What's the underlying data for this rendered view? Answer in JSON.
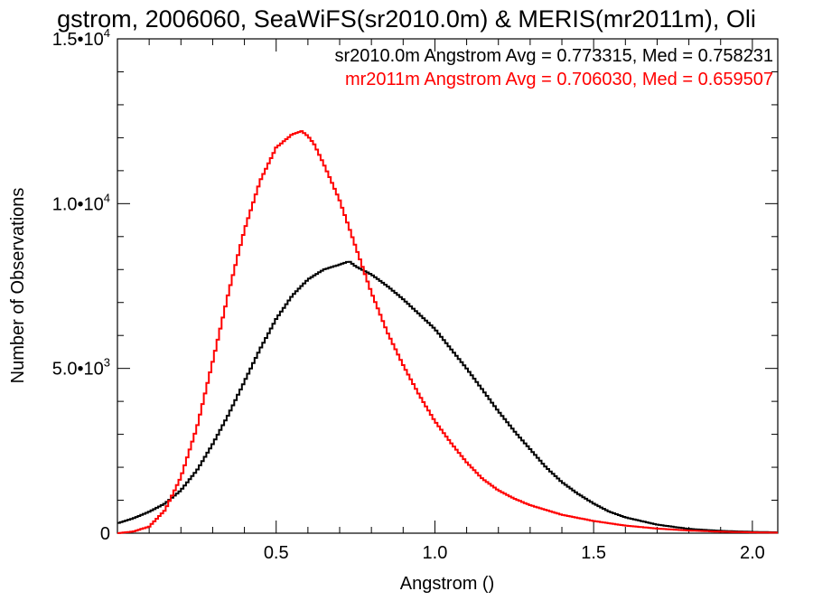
{
  "chart_data": {
    "type": "line",
    "step": true,
    "title": "gstrom, 2006060, SeaWiFS(sr2010.0m) & MERIS(mr2011m), Oli",
    "xlabel": "Angstrom ()",
    "ylabel": "Number of Observations",
    "xlim": [
      0.0,
      2.08
    ],
    "ylim": [
      0,
      15000
    ],
    "x_ticks": [
      {
        "value": 0.5,
        "label": "0.5"
      },
      {
        "value": 1.0,
        "label": "1.0"
      },
      {
        "value": 1.5,
        "label": "1.5"
      },
      {
        "value": 2.0,
        "label": "2.0"
      }
    ],
    "y_ticks": [
      {
        "value": 0,
        "mantissa": "0",
        "exp": ""
      },
      {
        "value": 5000,
        "mantissa": "5.0•10",
        "exp": "3"
      },
      {
        "value": 10000,
        "mantissa": "1.0•10",
        "exp": "4"
      },
      {
        "value": 15000,
        "mantissa": "1.5•10",
        "exp": "4"
      }
    ],
    "grid": false,
    "legend_position": "top-right",
    "series": [
      {
        "name": "sr2010.0m",
        "legend": "sr2010.0m Angstrom Avg = 0.773315, Med = 0.758231",
        "color": "#000000",
        "x": [
          0.0,
          0.05,
          0.1,
          0.15,
          0.2,
          0.25,
          0.3,
          0.35,
          0.4,
          0.45,
          0.5,
          0.55,
          0.6,
          0.65,
          0.7,
          0.73,
          0.75,
          0.8,
          0.85,
          0.9,
          0.95,
          1.0,
          1.05,
          1.1,
          1.15,
          1.2,
          1.25,
          1.3,
          1.35,
          1.4,
          1.45,
          1.5,
          1.55,
          1.6,
          1.7,
          1.8,
          1.9,
          2.0,
          2.08
        ],
        "y": [
          300,
          450,
          650,
          900,
          1300,
          1900,
          2700,
          3600,
          4600,
          5600,
          6500,
          7200,
          7700,
          8000,
          8150,
          8250,
          8100,
          7850,
          7500,
          7100,
          6650,
          6200,
          5600,
          5000,
          4350,
          3700,
          3100,
          2550,
          2000,
          1550,
          1200,
          900,
          650,
          480,
          260,
          130,
          70,
          40,
          25
        ]
      },
      {
        "name": "mr2011m",
        "legend": "mr2011m Angstrom Avg = 0.706030, Med = 0.659507",
        "color": "#ff0000",
        "x": [
          0.0,
          0.05,
          0.1,
          0.15,
          0.2,
          0.25,
          0.3,
          0.35,
          0.4,
          0.45,
          0.5,
          0.55,
          0.58,
          0.6,
          0.62,
          0.65,
          0.7,
          0.75,
          0.8,
          0.85,
          0.9,
          0.95,
          1.0,
          1.05,
          1.1,
          1.15,
          1.2,
          1.25,
          1.3,
          1.4,
          1.5,
          1.6,
          1.7,
          1.8,
          1.9,
          2.0,
          2.08
        ],
        "y": [
          0,
          50,
          200,
          700,
          1700,
          3200,
          5200,
          7300,
          9200,
          10700,
          11700,
          12100,
          12200,
          12050,
          11800,
          11200,
          10100,
          8700,
          7300,
          6100,
          5100,
          4200,
          3400,
          2750,
          2150,
          1650,
          1300,
          1050,
          850,
          560,
          370,
          230,
          140,
          80,
          45,
          25,
          15
        ]
      }
    ]
  }
}
